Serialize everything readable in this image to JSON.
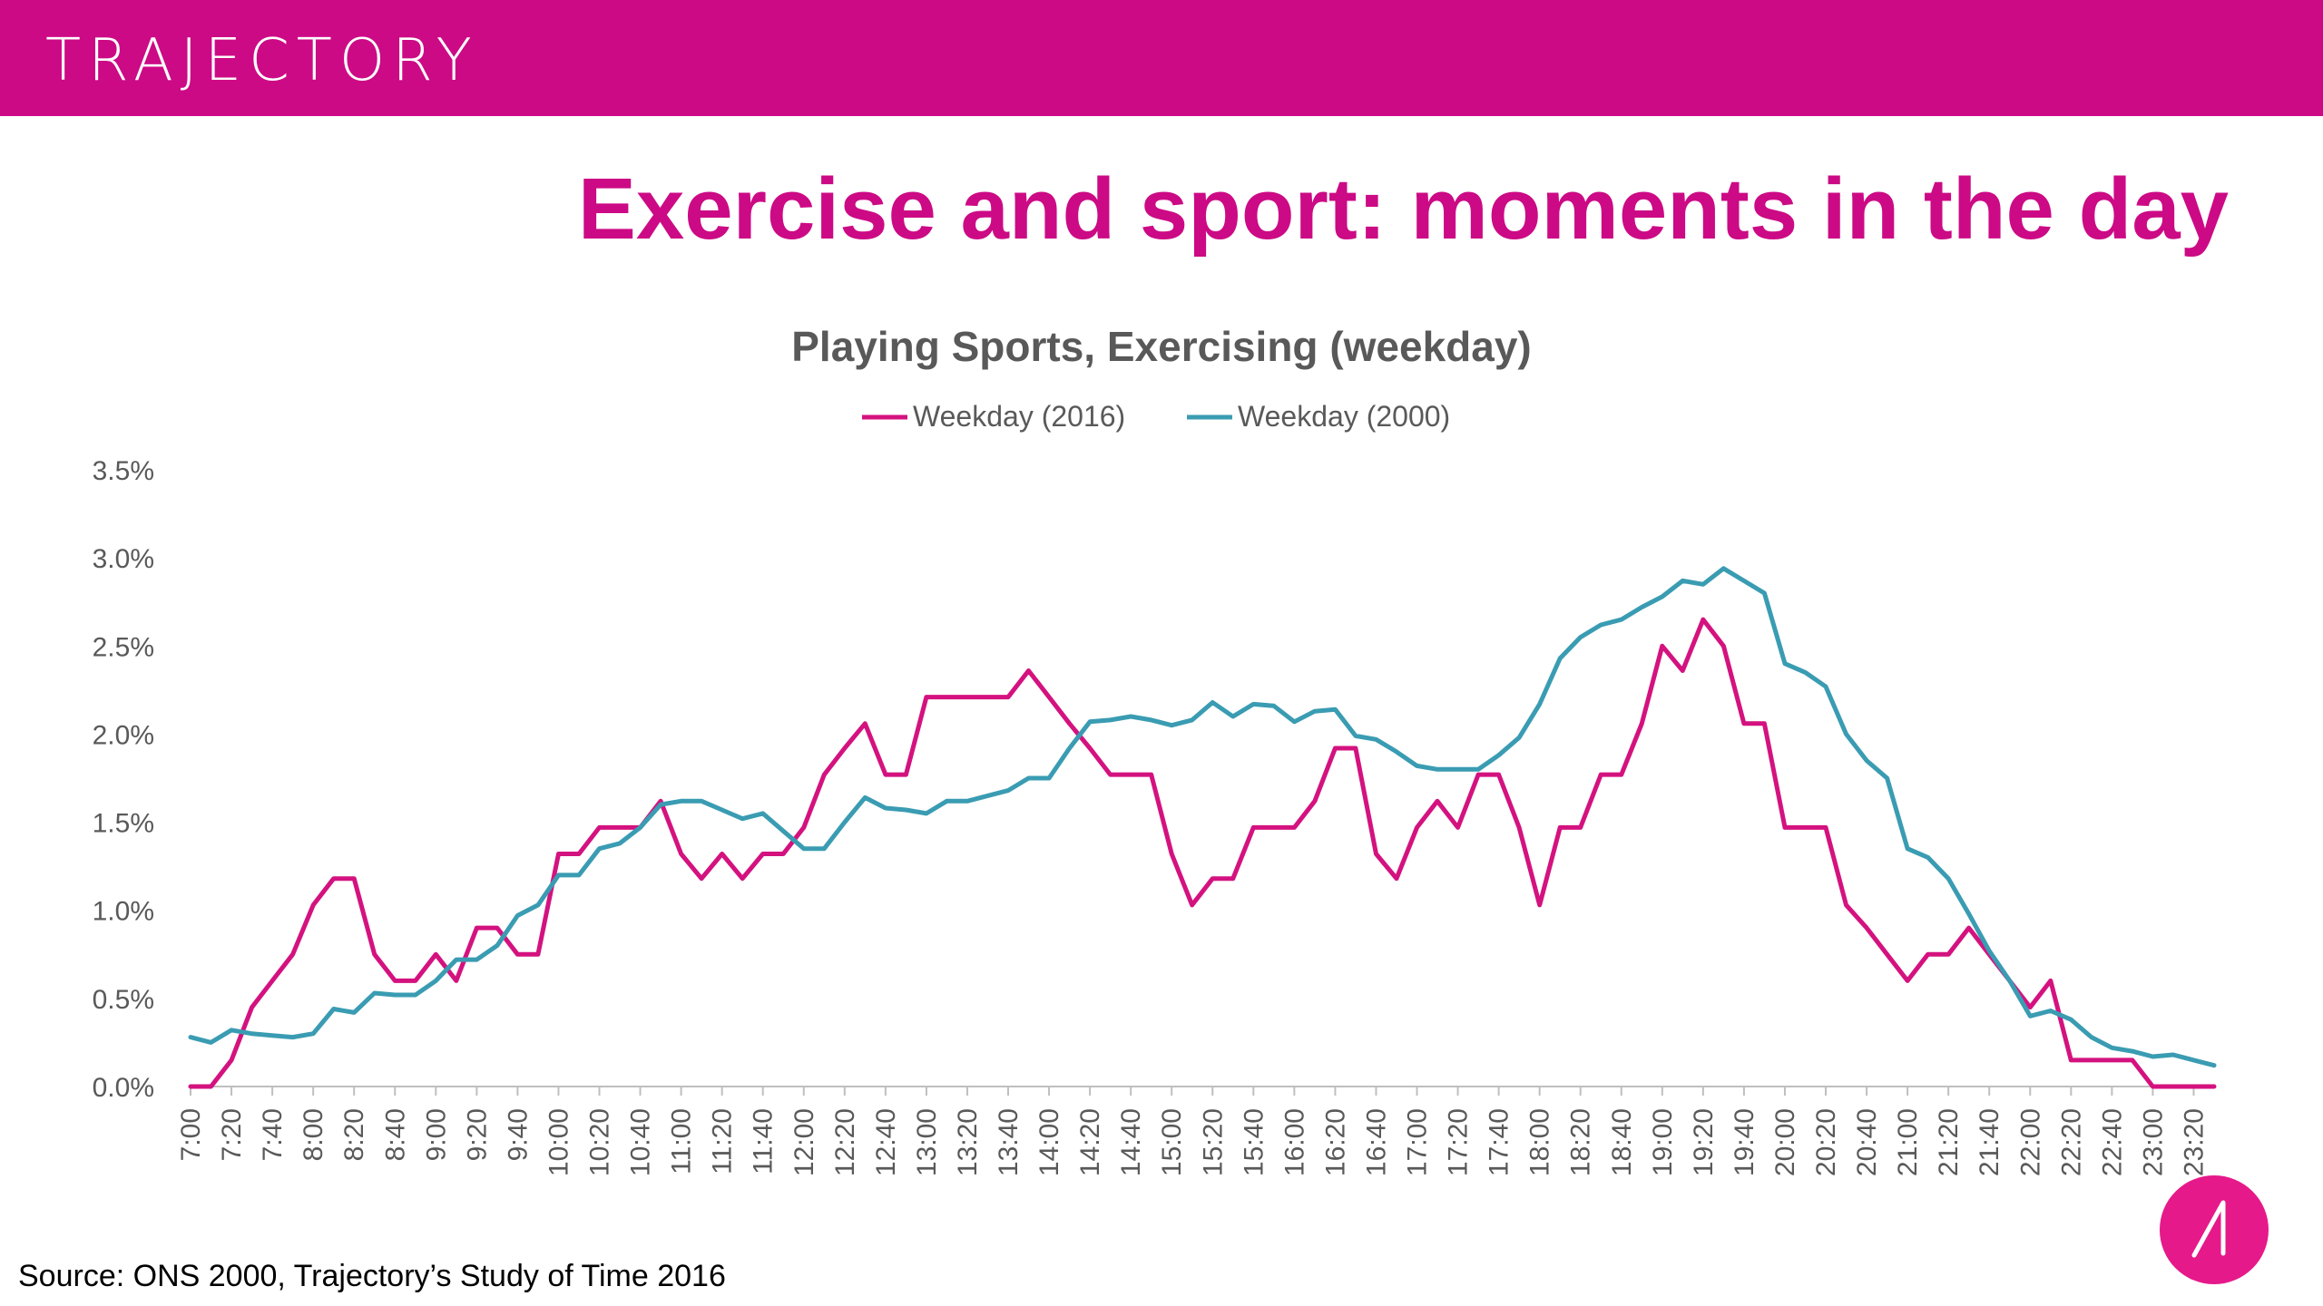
{
  "brand": {
    "name": "TRAJECTORY"
  },
  "page": {
    "title": "Exercise and sport: moments in the day",
    "source": "Source: ONS 2000, Trajectory’s Study of Time 2016"
  },
  "colors": {
    "brand": "#cc0a85",
    "series_2016": "#d4127f",
    "series_2000": "#3a9cb2",
    "grid": "#d9d9d9",
    "text": "#595959"
  },
  "icons": {
    "badge": "trajectory-logo-icon"
  },
  "chart_data": {
    "type": "line",
    "title": "Playing Sports, Exercising (weekday)",
    "xlabel": "",
    "ylabel": "",
    "ylim": [
      0,
      3.5
    ],
    "yticks": [
      "0.0%",
      "0.5%",
      "1.0%",
      "1.5%",
      "2.0%",
      "2.5%",
      "3.0%",
      "3.5%"
    ],
    "legend_position": "top-center",
    "x": [
      "7:00",
      "7:10",
      "7:20",
      "7:30",
      "7:40",
      "7:50",
      "8:00",
      "8:10",
      "8:20",
      "8:30",
      "8:40",
      "8:50",
      "9:00",
      "9:10",
      "9:20",
      "9:30",
      "9:40",
      "9:50",
      "10:00",
      "10:10",
      "10:20",
      "10:30",
      "10:40",
      "10:50",
      "11:00",
      "11:10",
      "11:20",
      "11:30",
      "11:40",
      "11:50",
      "12:00",
      "12:10",
      "12:20",
      "12:30",
      "12:40",
      "12:50",
      "13:00",
      "13:10",
      "13:20",
      "13:30",
      "13:40",
      "13:50",
      "14:00",
      "14:10",
      "14:20",
      "14:30",
      "14:40",
      "14:50",
      "15:00",
      "15:10",
      "15:20",
      "15:30",
      "15:40",
      "15:50",
      "16:00",
      "16:10",
      "16:20",
      "16:30",
      "16:40",
      "16:50",
      "17:00",
      "17:10",
      "17:20",
      "17:30",
      "17:40",
      "17:50",
      "18:00",
      "18:10",
      "18:20",
      "18:30",
      "18:40",
      "18:50",
      "19:00",
      "19:10",
      "19:20",
      "19:30",
      "19:40",
      "19:50",
      "20:00",
      "20:10",
      "20:20",
      "20:30",
      "20:40",
      "20:50",
      "21:00",
      "21:10",
      "21:20",
      "21:30",
      "21:40",
      "21:50",
      "22:00",
      "22:10",
      "22:20",
      "22:30",
      "22:40",
      "22:50",
      "23:00",
      "23:10",
      "23:20",
      "23:30"
    ],
    "xtick_labels": [
      "7:00",
      "7:20",
      "7:40",
      "8:00",
      "8:20",
      "8:40",
      "9:00",
      "9:20",
      "9:40",
      "10:00",
      "10:20",
      "10:40",
      "11:00",
      "11:20",
      "11:40",
      "12:00",
      "12:20",
      "12:40",
      "13:00",
      "13:20",
      "13:40",
      "14:00",
      "14:20",
      "14:40",
      "15:00",
      "15:20",
      "15:40",
      "16:00",
      "16:20",
      "16:40",
      "17:00",
      "17:20",
      "17:40",
      "18:00",
      "18:20",
      "18:40",
      "19:00",
      "19:20",
      "19:40",
      "20:00",
      "20:20",
      "20:40",
      "21:00",
      "21:20",
      "21:40",
      "22:00",
      "22:20",
      "22:40",
      "23:00",
      "23:20"
    ],
    "series": [
      {
        "name": "Weekday (2016)",
        "color": "#d4127f",
        "values": [
          0.0,
          0.0,
          0.15,
          0.45,
          0.6,
          0.75,
          1.03,
          1.18,
          1.18,
          0.75,
          0.6,
          0.6,
          0.75,
          0.6,
          0.9,
          0.9,
          0.75,
          0.75,
          1.32,
          1.32,
          1.47,
          1.47,
          1.47,
          1.62,
          1.32,
          1.18,
          1.32,
          1.18,
          1.32,
          1.32,
          1.47,
          1.77,
          1.92,
          2.06,
          1.77,
          1.77,
          2.21,
          2.21,
          2.21,
          2.21,
          2.21,
          2.36,
          2.21,
          2.06,
          1.92,
          1.77,
          1.77,
          1.77,
          1.32,
          1.03,
          1.18,
          1.18,
          1.47,
          1.47,
          1.47,
          1.62,
          1.92,
          1.92,
          1.32,
          1.18,
          1.47,
          1.62,
          1.47,
          1.77,
          1.77,
          1.47,
          1.03,
          1.47,
          1.47,
          1.77,
          1.77,
          2.06,
          2.5,
          2.36,
          2.65,
          2.5,
          2.06,
          2.06,
          1.47,
          1.47,
          1.47,
          1.03,
          0.9,
          0.75,
          0.6,
          0.75,
          0.75,
          0.9,
          0.75,
          0.6,
          0.45,
          0.6,
          0.15,
          0.15,
          0.15,
          0.15,
          0.0,
          0.0,
          0.0,
          0.0
        ]
      },
      {
        "name": "Weekday (2000)",
        "color": "#3a9cb2",
        "values": [
          0.28,
          0.25,
          0.32,
          0.3,
          0.29,
          0.28,
          0.3,
          0.44,
          0.42,
          0.53,
          0.52,
          0.52,
          0.6,
          0.72,
          0.72,
          0.8,
          0.97,
          1.03,
          1.2,
          1.2,
          1.35,
          1.38,
          1.47,
          1.6,
          1.62,
          1.62,
          1.57,
          1.52,
          1.55,
          1.45,
          1.35,
          1.35,
          1.5,
          1.64,
          1.58,
          1.57,
          1.55,
          1.62,
          1.62,
          1.65,
          1.68,
          1.75,
          1.75,
          1.92,
          2.07,
          2.08,
          2.1,
          2.08,
          2.05,
          2.08,
          2.18,
          2.1,
          2.17,
          2.16,
          2.07,
          2.13,
          2.14,
          1.99,
          1.97,
          1.9,
          1.82,
          1.8,
          1.8,
          1.8,
          1.88,
          1.98,
          2.17,
          2.43,
          2.55,
          2.62,
          2.65,
          2.72,
          2.78,
          2.87,
          2.85,
          2.94,
          2.87,
          2.8,
          2.4,
          2.35,
          2.27,
          2.0,
          1.85,
          1.75,
          1.35,
          1.3,
          1.18,
          0.98,
          0.77,
          0.6,
          0.4,
          0.43,
          0.38,
          0.28,
          0.22,
          0.2,
          0.17,
          0.18,
          0.15,
          0.12
        ]
      }
    ]
  }
}
